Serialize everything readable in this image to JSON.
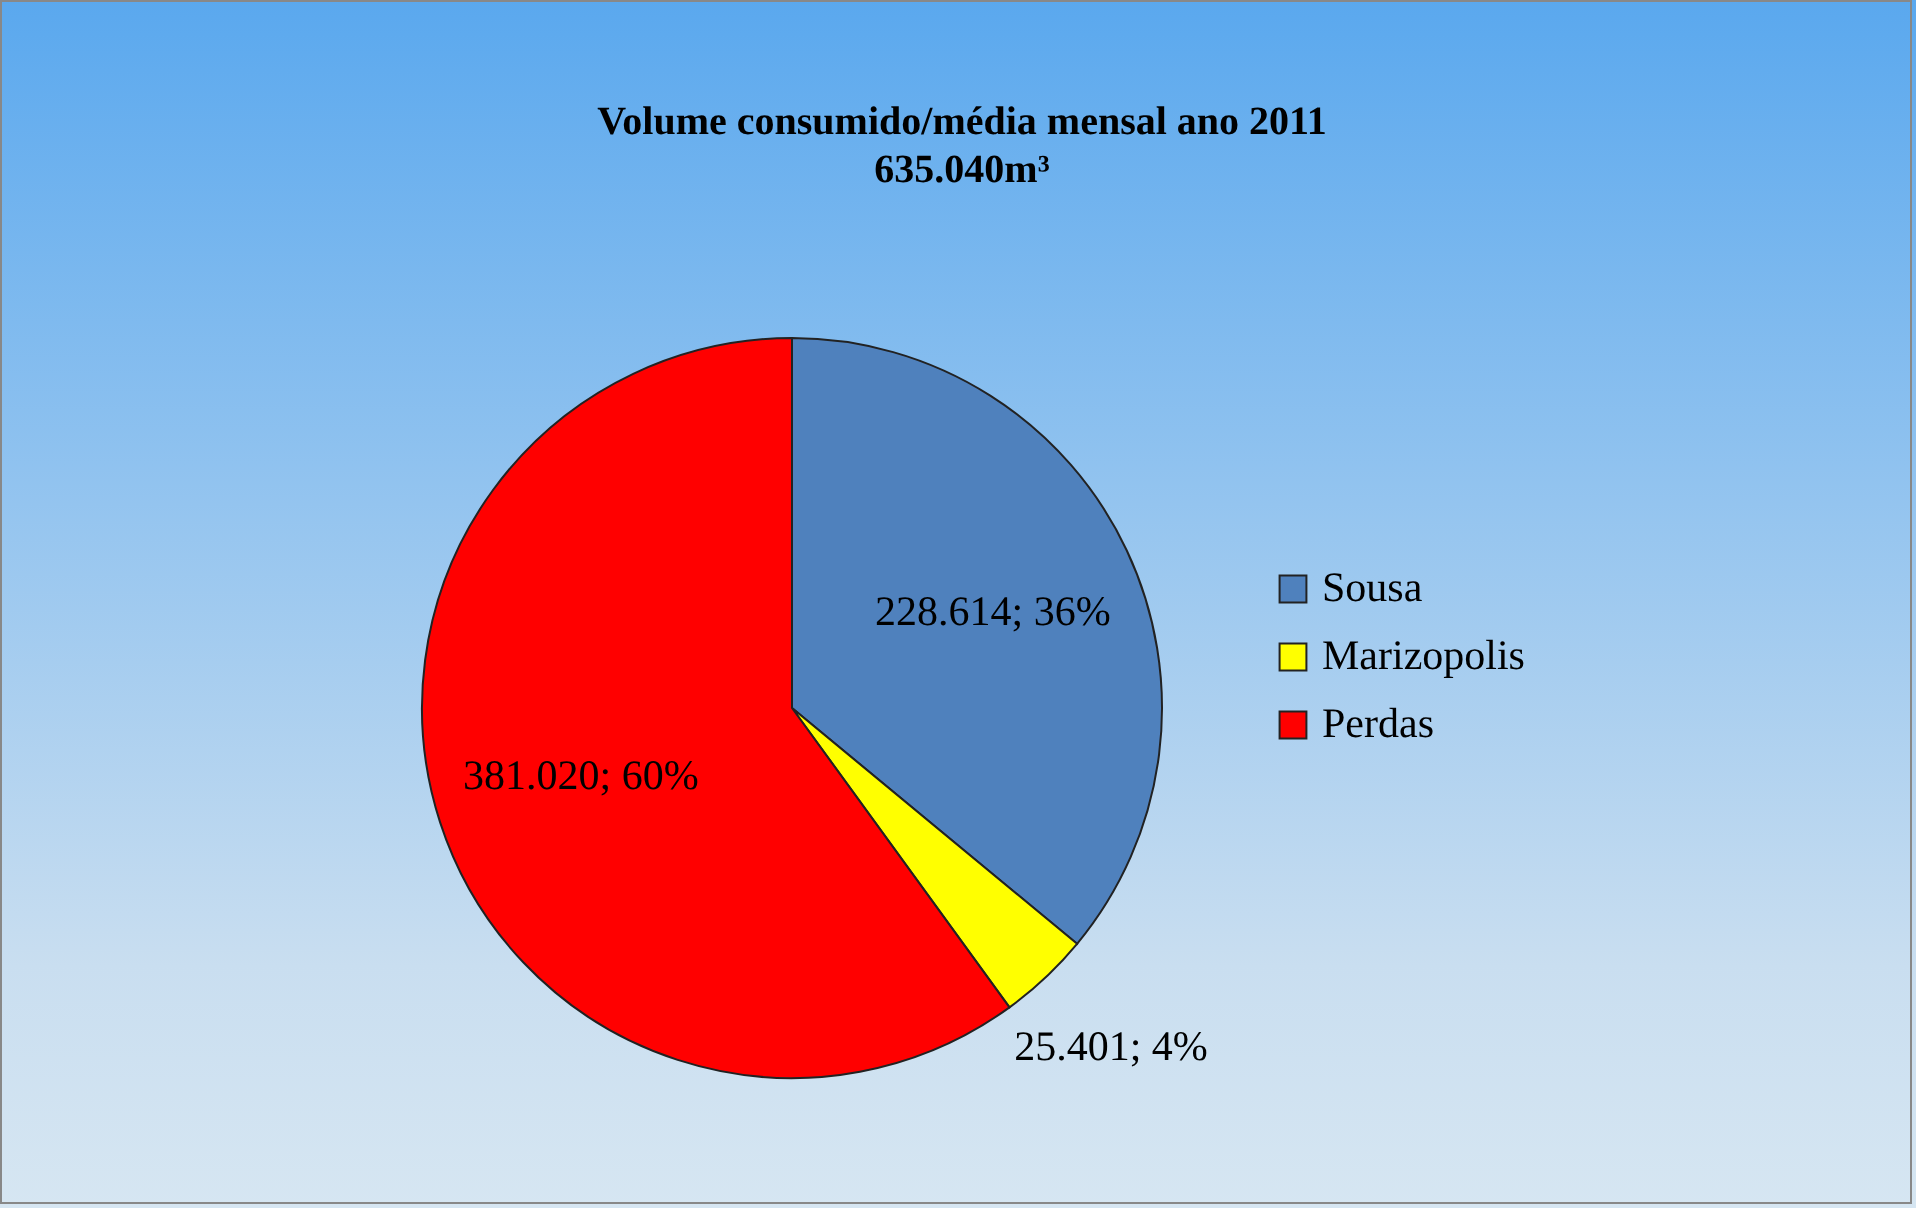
{
  "chart_data": {
    "type": "pie",
    "title": "Volume consumido/média mensal ano  2011",
    "subtitle": "635.040m³",
    "categories": [
      "Sousa",
      "Marizopolis",
      "Perdas"
    ],
    "values": [
      228614,
      25401,
      381020
    ],
    "colors": [
      "#4f81bd",
      "#ffff00",
      "#ff0000"
    ],
    "value_labels": [
      "228.614; 36%",
      "25.401; 4%",
      "381.020; 60%"
    ],
    "legend": "right"
  }
}
